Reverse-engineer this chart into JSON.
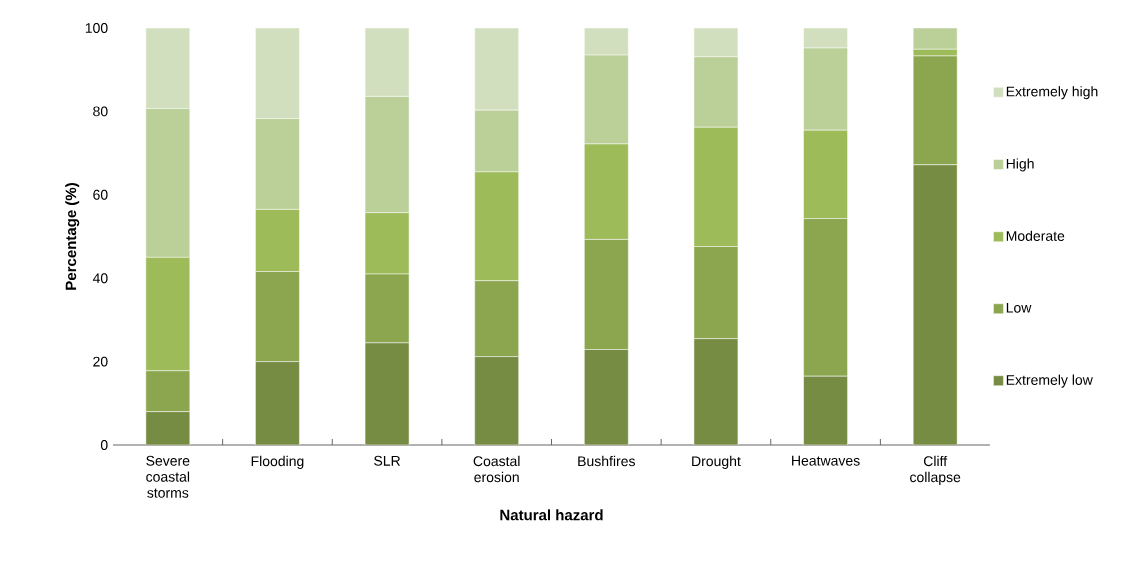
{
  "chart_data": {
    "type": "bar",
    "stacked": true,
    "xlabel": "Natural hazard",
    "ylabel": "Percentage (%)",
    "categories": [
      "Severe coastal storms",
      "Flooding",
      "SLR",
      "Coastal erosion",
      "Bushfires",
      "Drought",
      "Heatwaves",
      "Cliff collapse"
    ],
    "series": [
      {
        "name": "Extremely low",
        "color": "#778c43",
        "values": [
          8.0,
          20.0,
          24.5,
          21.2,
          22.9,
          25.5,
          16.5,
          67.2
        ]
      },
      {
        "name": "Low",
        "color": "#8ba64f",
        "values": [
          9.8,
          21.6,
          16.5,
          18.2,
          26.4,
          22.1,
          37.8,
          26.1
        ]
      },
      {
        "name": "Moderate",
        "color": "#9dbb59",
        "values": [
          27.2,
          14.9,
          14.7,
          26.1,
          22.9,
          28.6,
          21.2,
          1.6
        ]
      },
      {
        "name": "High",
        "color": "#bbcf98",
        "values": [
          35.7,
          21.8,
          27.9,
          14.8,
          21.3,
          16.9,
          19.7,
          5.1
        ]
      },
      {
        "name": "Extremely high",
        "color": "#d2dfbf",
        "values": [
          19.3,
          21.7,
          16.4,
          19.7,
          6.5,
          6.9,
          4.8,
          0
        ]
      }
    ],
    "ylim": [
      0,
      100
    ],
    "yticks": [
      0,
      20,
      40,
      60,
      80,
      100
    ],
    "grid": false,
    "legend": "right"
  }
}
